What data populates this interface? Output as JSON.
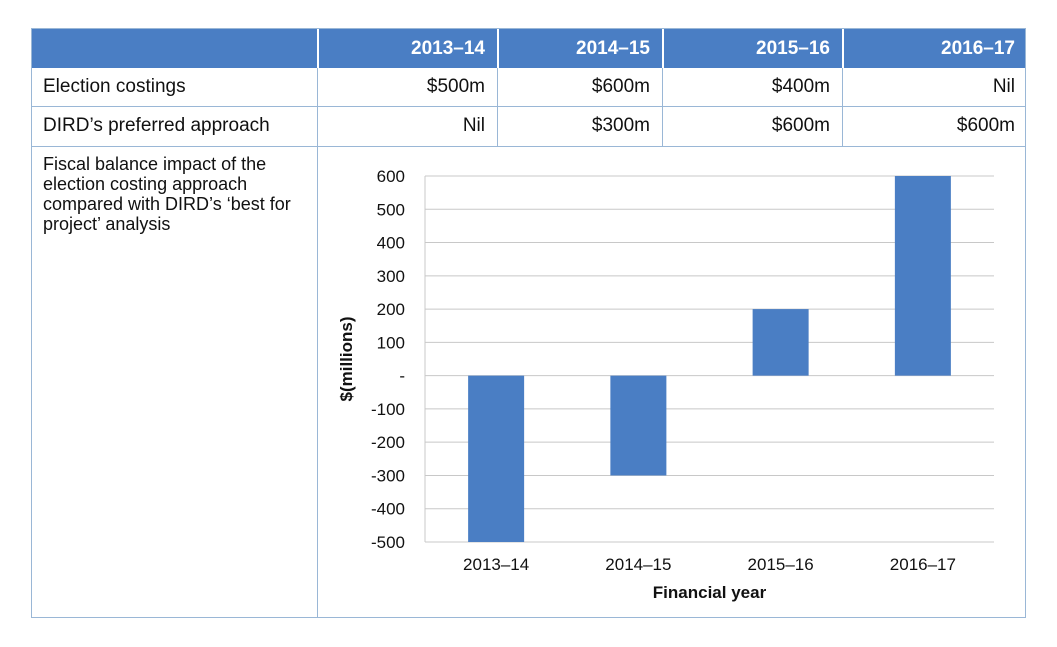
{
  "table": {
    "header": [
      "",
      "2013–14",
      "2014–15",
      "2015–16",
      "2016–17"
    ],
    "rows": [
      {
        "label": "Election costings",
        "values": [
          "$500m",
          "$600m",
          "$400m",
          "Nil"
        ]
      },
      {
        "label": "DIRD’s preferred approach",
        "values": [
          "Nil",
          "$300m",
          "$600m",
          "$600m"
        ]
      }
    ],
    "chart_row_label": "Fiscal balance impact of the election costing approach compared with DIRD’s ‘best for project’ analysis"
  },
  "colors": {
    "header_bg": "#4a7ec4",
    "bar": "#4a7ec4",
    "border": "#9ab7d6",
    "grid": "#c8c8c8"
  },
  "chart_data": {
    "type": "bar",
    "categories": [
      "2013–14",
      "2014–15",
      "2015–16",
      "2016–17"
    ],
    "values": [
      -500,
      -300,
      200,
      600
    ],
    "xlabel": "Financial year",
    "ylabel": "$(millions)",
    "ylim": [
      -500,
      600
    ],
    "yticks": [
      600,
      500,
      400,
      300,
      200,
      100,
      0,
      -100,
      -200,
      -300,
      -400,
      -500
    ],
    "ytick_labels": [
      "600",
      "500",
      "400",
      "300",
      "200",
      "100",
      "-",
      "-100",
      "-200",
      "-300",
      "-400",
      "-500"
    ],
    "grid": true,
    "legend": "none"
  }
}
